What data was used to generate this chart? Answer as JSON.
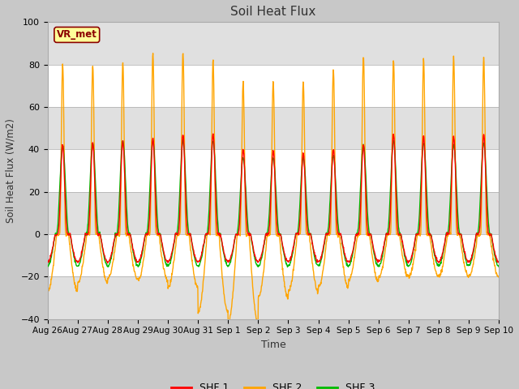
{
  "title": "Soil Heat Flux",
  "xlabel": "Time",
  "ylabel": "Soil Heat Flux (W/m2)",
  "ylim": [
    -40,
    100
  ],
  "yticks": [
    -40,
    -20,
    0,
    20,
    40,
    60,
    80,
    100
  ],
  "color_shf1": "#FF0000",
  "color_shf2": "#FFA500",
  "color_shf3": "#00BB00",
  "legend_labels": [
    "SHF 1",
    "SHF 2",
    "SHF 3"
  ],
  "station_label": "VR_met",
  "fig_facecolor": "#C8C8C8",
  "plot_bg_color": "#FFFFFF",
  "band_color": "#E0E0E0",
  "xtick_labels": [
    "Aug 26",
    "Aug 27",
    "Aug 28",
    "Aug 29",
    "Aug 30",
    "Aug 31",
    "Sep 1",
    "Sep 2",
    "Sep 3",
    "Sep 4",
    "Sep 5",
    "Sep 6",
    "Sep 7",
    "Sep 8",
    "Sep 9",
    "Sep 10"
  ],
  "linewidth": 1.0,
  "shf2_day_peaks": [
    80,
    80,
    81,
    85,
    86,
    82,
    72,
    72,
    72,
    78,
    84,
    82,
    82,
    83,
    83
  ],
  "shf2_night_mins": [
    -27,
    -23,
    -21,
    -22,
    -25,
    -37,
    -42,
    -30,
    -27,
    -25,
    -22,
    -20,
    -20,
    -20,
    -20
  ],
  "shf1_day_peaks": [
    42,
    43,
    44,
    45,
    47,
    47,
    40,
    39,
    38,
    40,
    42,
    47,
    46,
    46,
    47
  ],
  "shf3_day_peaks": [
    42,
    43,
    44,
    44,
    44,
    44,
    36,
    36,
    36,
    37,
    42,
    44,
    43,
    42,
    43
  ]
}
